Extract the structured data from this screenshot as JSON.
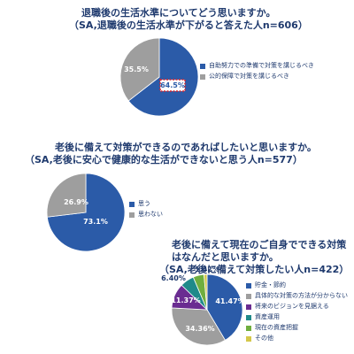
{
  "chart_data": [
    {
      "type": "pie",
      "title": "退職後の生活水準についてどう思いますか。",
      "subtitle": "（SA,退職後の生活水準が下がると答えた人n=606）",
      "series": [
        {
          "name": "自助努力での準備で対策を講じるべき",
          "value": 64.5,
          "label": "64.5%",
          "color": "#2b5ba8"
        },
        {
          "name": "公的保障で対策を講じるべき",
          "value": 35.5,
          "label": "35.5%",
          "color": "#9e9e9e"
        }
      ],
      "legend_position": "right"
    },
    {
      "type": "pie",
      "title": "老後に備えて対策ができるのであればしたいと思いますか。",
      "subtitle": "（SA,老後に安心で健康的な生活ができないと思う人n=577）",
      "series": [
        {
          "name": "思う",
          "value": 73.1,
          "label": "73.1%",
          "color": "#2b5ba8"
        },
        {
          "name": "思わない",
          "value": 26.9,
          "label": "26.9%",
          "color": "#9e9e9e"
        }
      ],
      "legend_position": "right"
    },
    {
      "type": "pie",
      "title": "老後に備えて現在のご自身でできる対策はなんだと思いますか。",
      "subtitle": "（SA,老後に備えて対策したい人n=422）",
      "series": [
        {
          "name": "貯金・節約",
          "value": 41.47,
          "label": "41.47%",
          "color": "#2b5ba8"
        },
        {
          "name": "具体的な対策の方法が分からない",
          "value": 34.36,
          "label": "34.36%",
          "color": "#9e9e9e"
        },
        {
          "name": "将来のビジョンを見据える",
          "value": 11.37,
          "label": "11.37%",
          "color": "#6a2c91"
        },
        {
          "name": "資産運用",
          "value": 6.4,
          "label": "6.40%",
          "color": "#1f8a8a"
        },
        {
          "name": "現在の資産把握",
          "value": 4.98,
          "label": "",
          "color": "#6fae3e"
        },
        {
          "name": "その他",
          "value": 1.42,
          "label": "1.42%",
          "color": "#d4c84a"
        }
      ],
      "legend_position": "right"
    }
  ]
}
